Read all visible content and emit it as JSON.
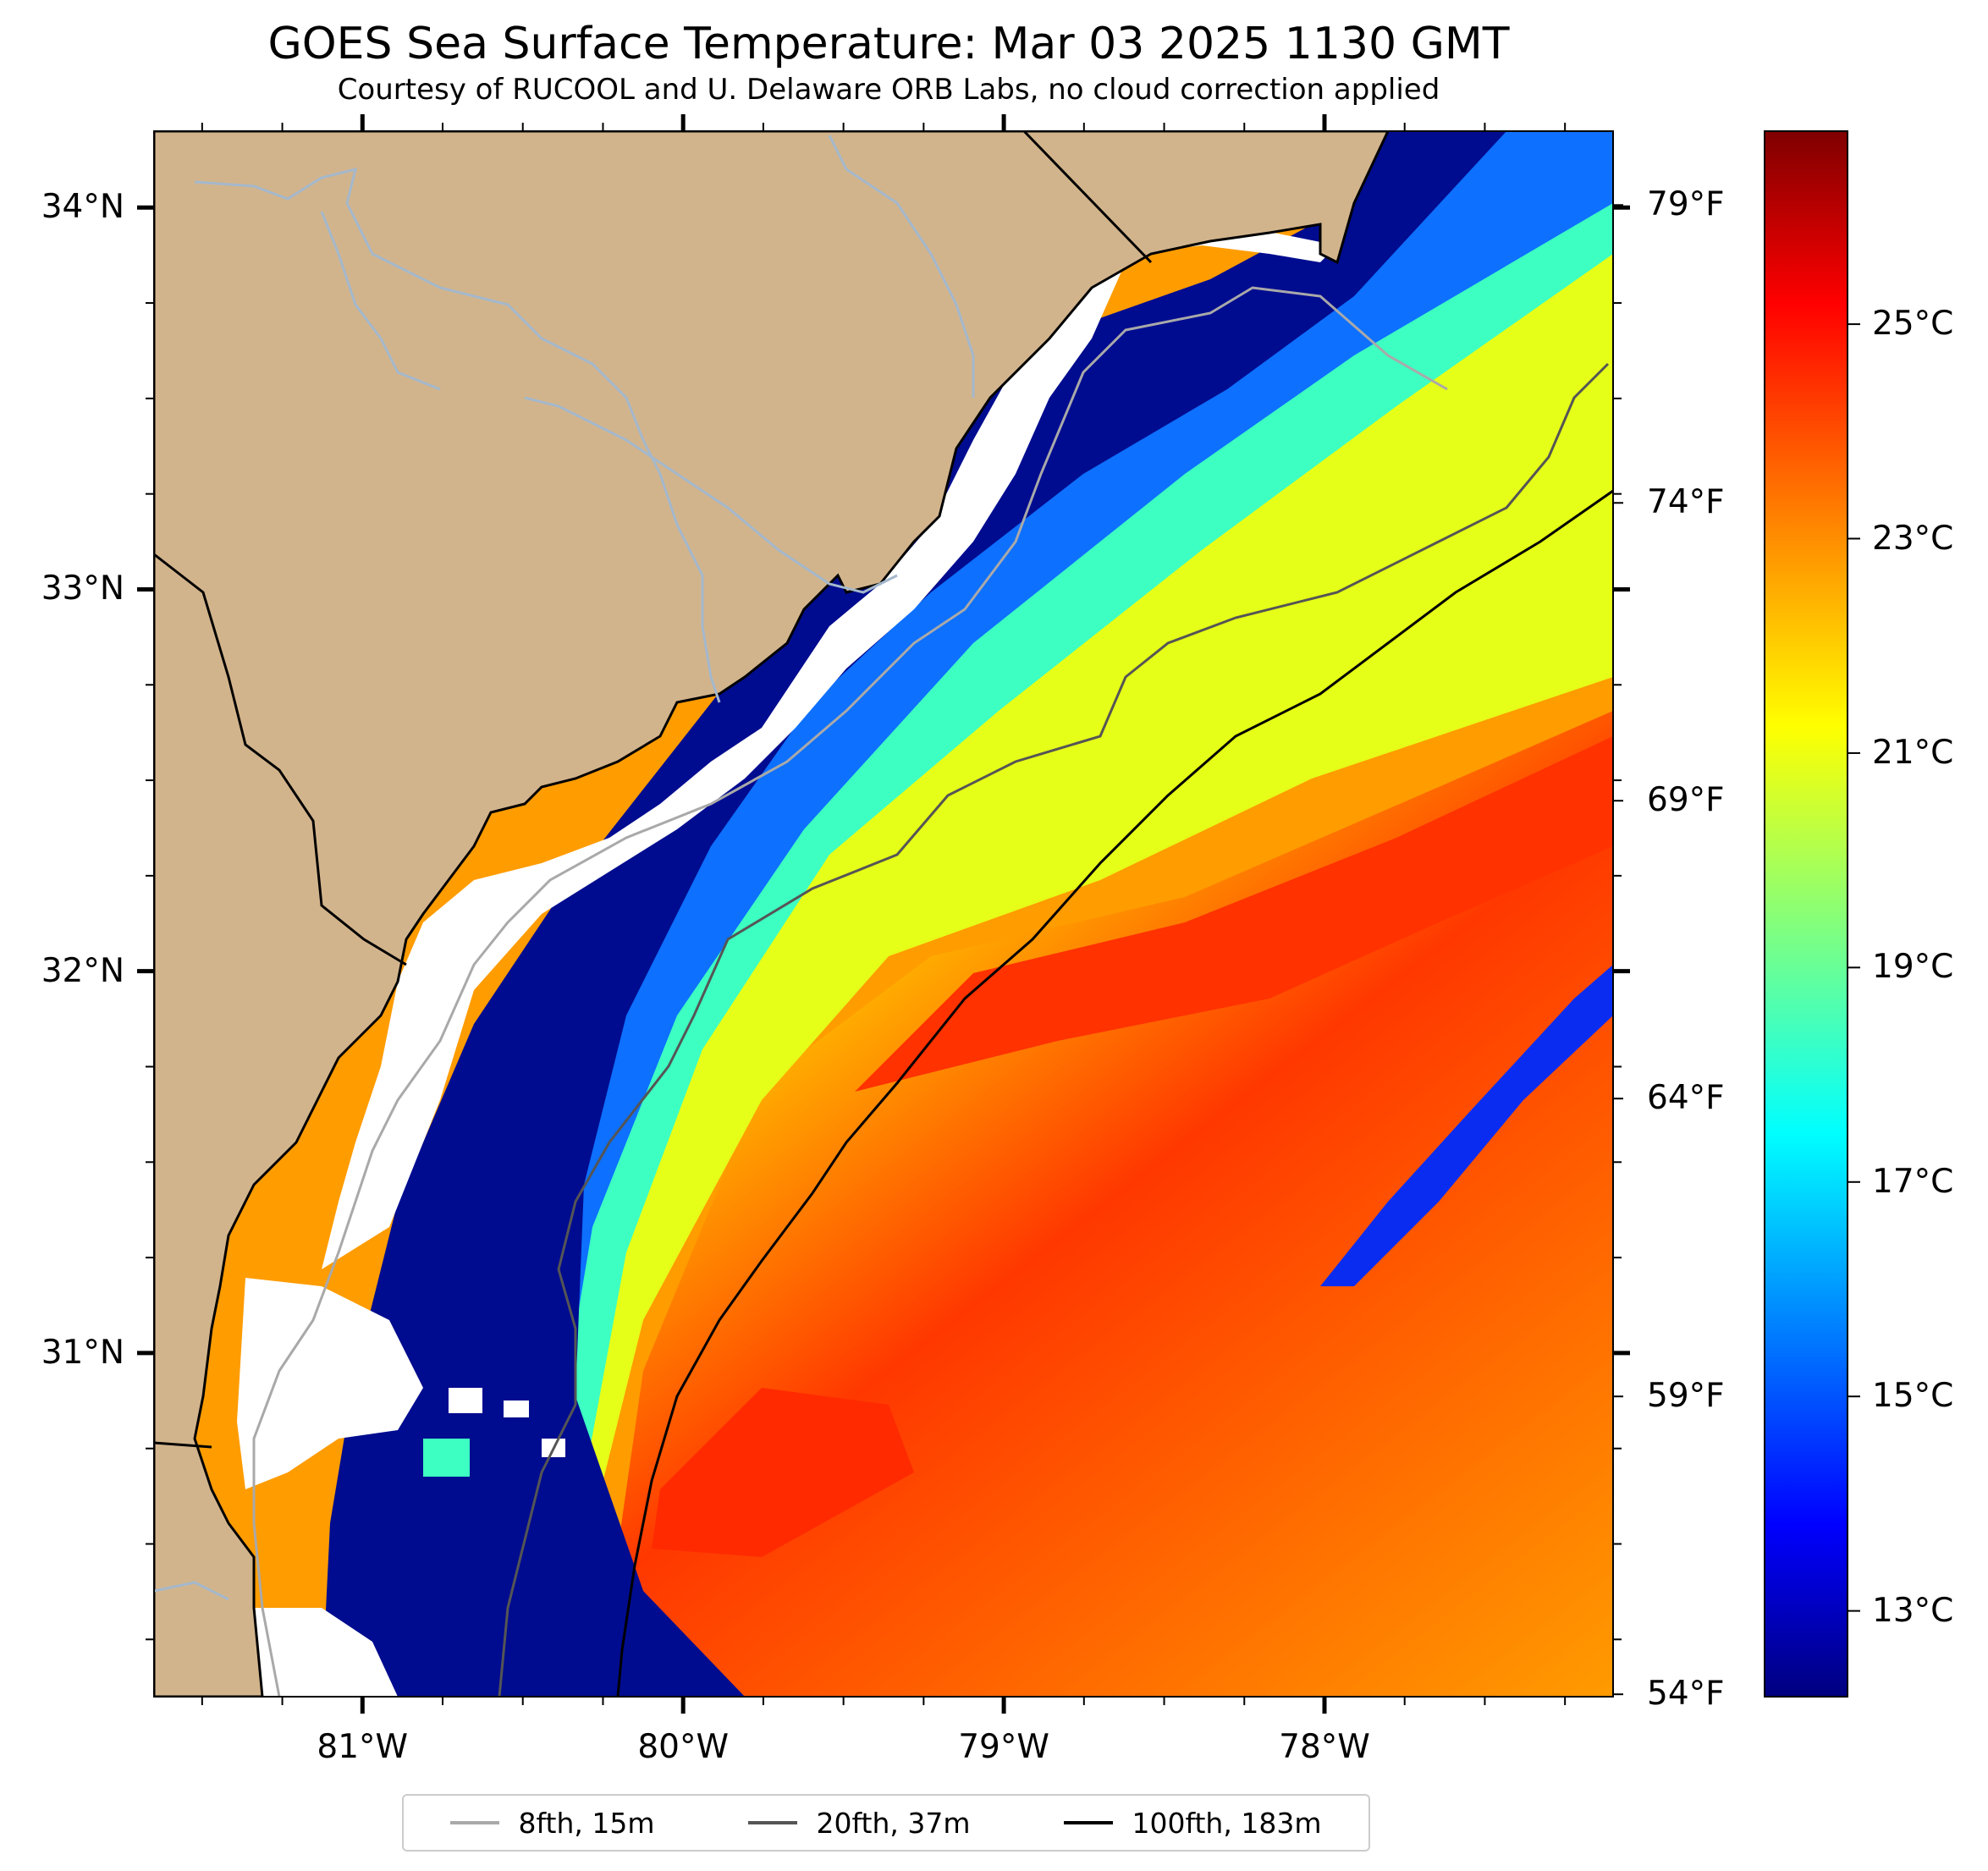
{
  "title": "GOES Sea Surface Temperature: Mar 03 2025 1130 GMT",
  "subtitle": "Courtesy of RUCOOL and U. Delaware ORB Labs, no cloud correction applied",
  "map": {
    "extent": {
      "lon_min": -81.65,
      "lon_max": -77.1,
      "lat_min": 30.1,
      "lat_max": 34.2
    },
    "land_color": "#d2b48c",
    "cloud_color": "#ffffff",
    "river_color": "#a4b8cc"
  },
  "lat_ticks": [
    {
      "value": 34,
      "label": "34°N"
    },
    {
      "value": 33,
      "label": "33°N"
    },
    {
      "value": 32,
      "label": "32°N"
    },
    {
      "value": 31,
      "label": "31°N"
    }
  ],
  "lon_ticks": [
    {
      "value": -81,
      "label": "81°W"
    },
    {
      "value": -80,
      "label": "80°W"
    },
    {
      "value": -79,
      "label": "79°W"
    },
    {
      "value": -78,
      "label": "78°W"
    }
  ],
  "fahrenheit_ticks": [
    {
      "value": 79,
      "label": "79°F"
    },
    {
      "value": 74,
      "label": "74°F"
    },
    {
      "value": 69,
      "label": "69°F"
    },
    {
      "value": 64,
      "label": "64°F"
    },
    {
      "value": 59,
      "label": "59°F"
    },
    {
      "value": 54,
      "label": "54°F"
    }
  ],
  "colorbar": {
    "colormap": "jet",
    "min_c": 12.2,
    "max_c": 26.8,
    "ticks": [
      {
        "value": 25,
        "label": "25°C"
      },
      {
        "value": 23,
        "label": "23°C"
      },
      {
        "value": 21,
        "label": "21°C"
      },
      {
        "value": 19,
        "label": "19°C"
      },
      {
        "value": 17,
        "label": "17°C"
      },
      {
        "value": 15,
        "label": "15°C"
      },
      {
        "value": 13,
        "label": "13°C"
      }
    ]
  },
  "legend": [
    {
      "label": "8fth, 15m",
      "color": "#a9a9a9"
    },
    {
      "label": "20fth, 37m",
      "color": "#555555"
    },
    {
      "label": "100fth, 183m",
      "color": "#000000"
    }
  ]
}
